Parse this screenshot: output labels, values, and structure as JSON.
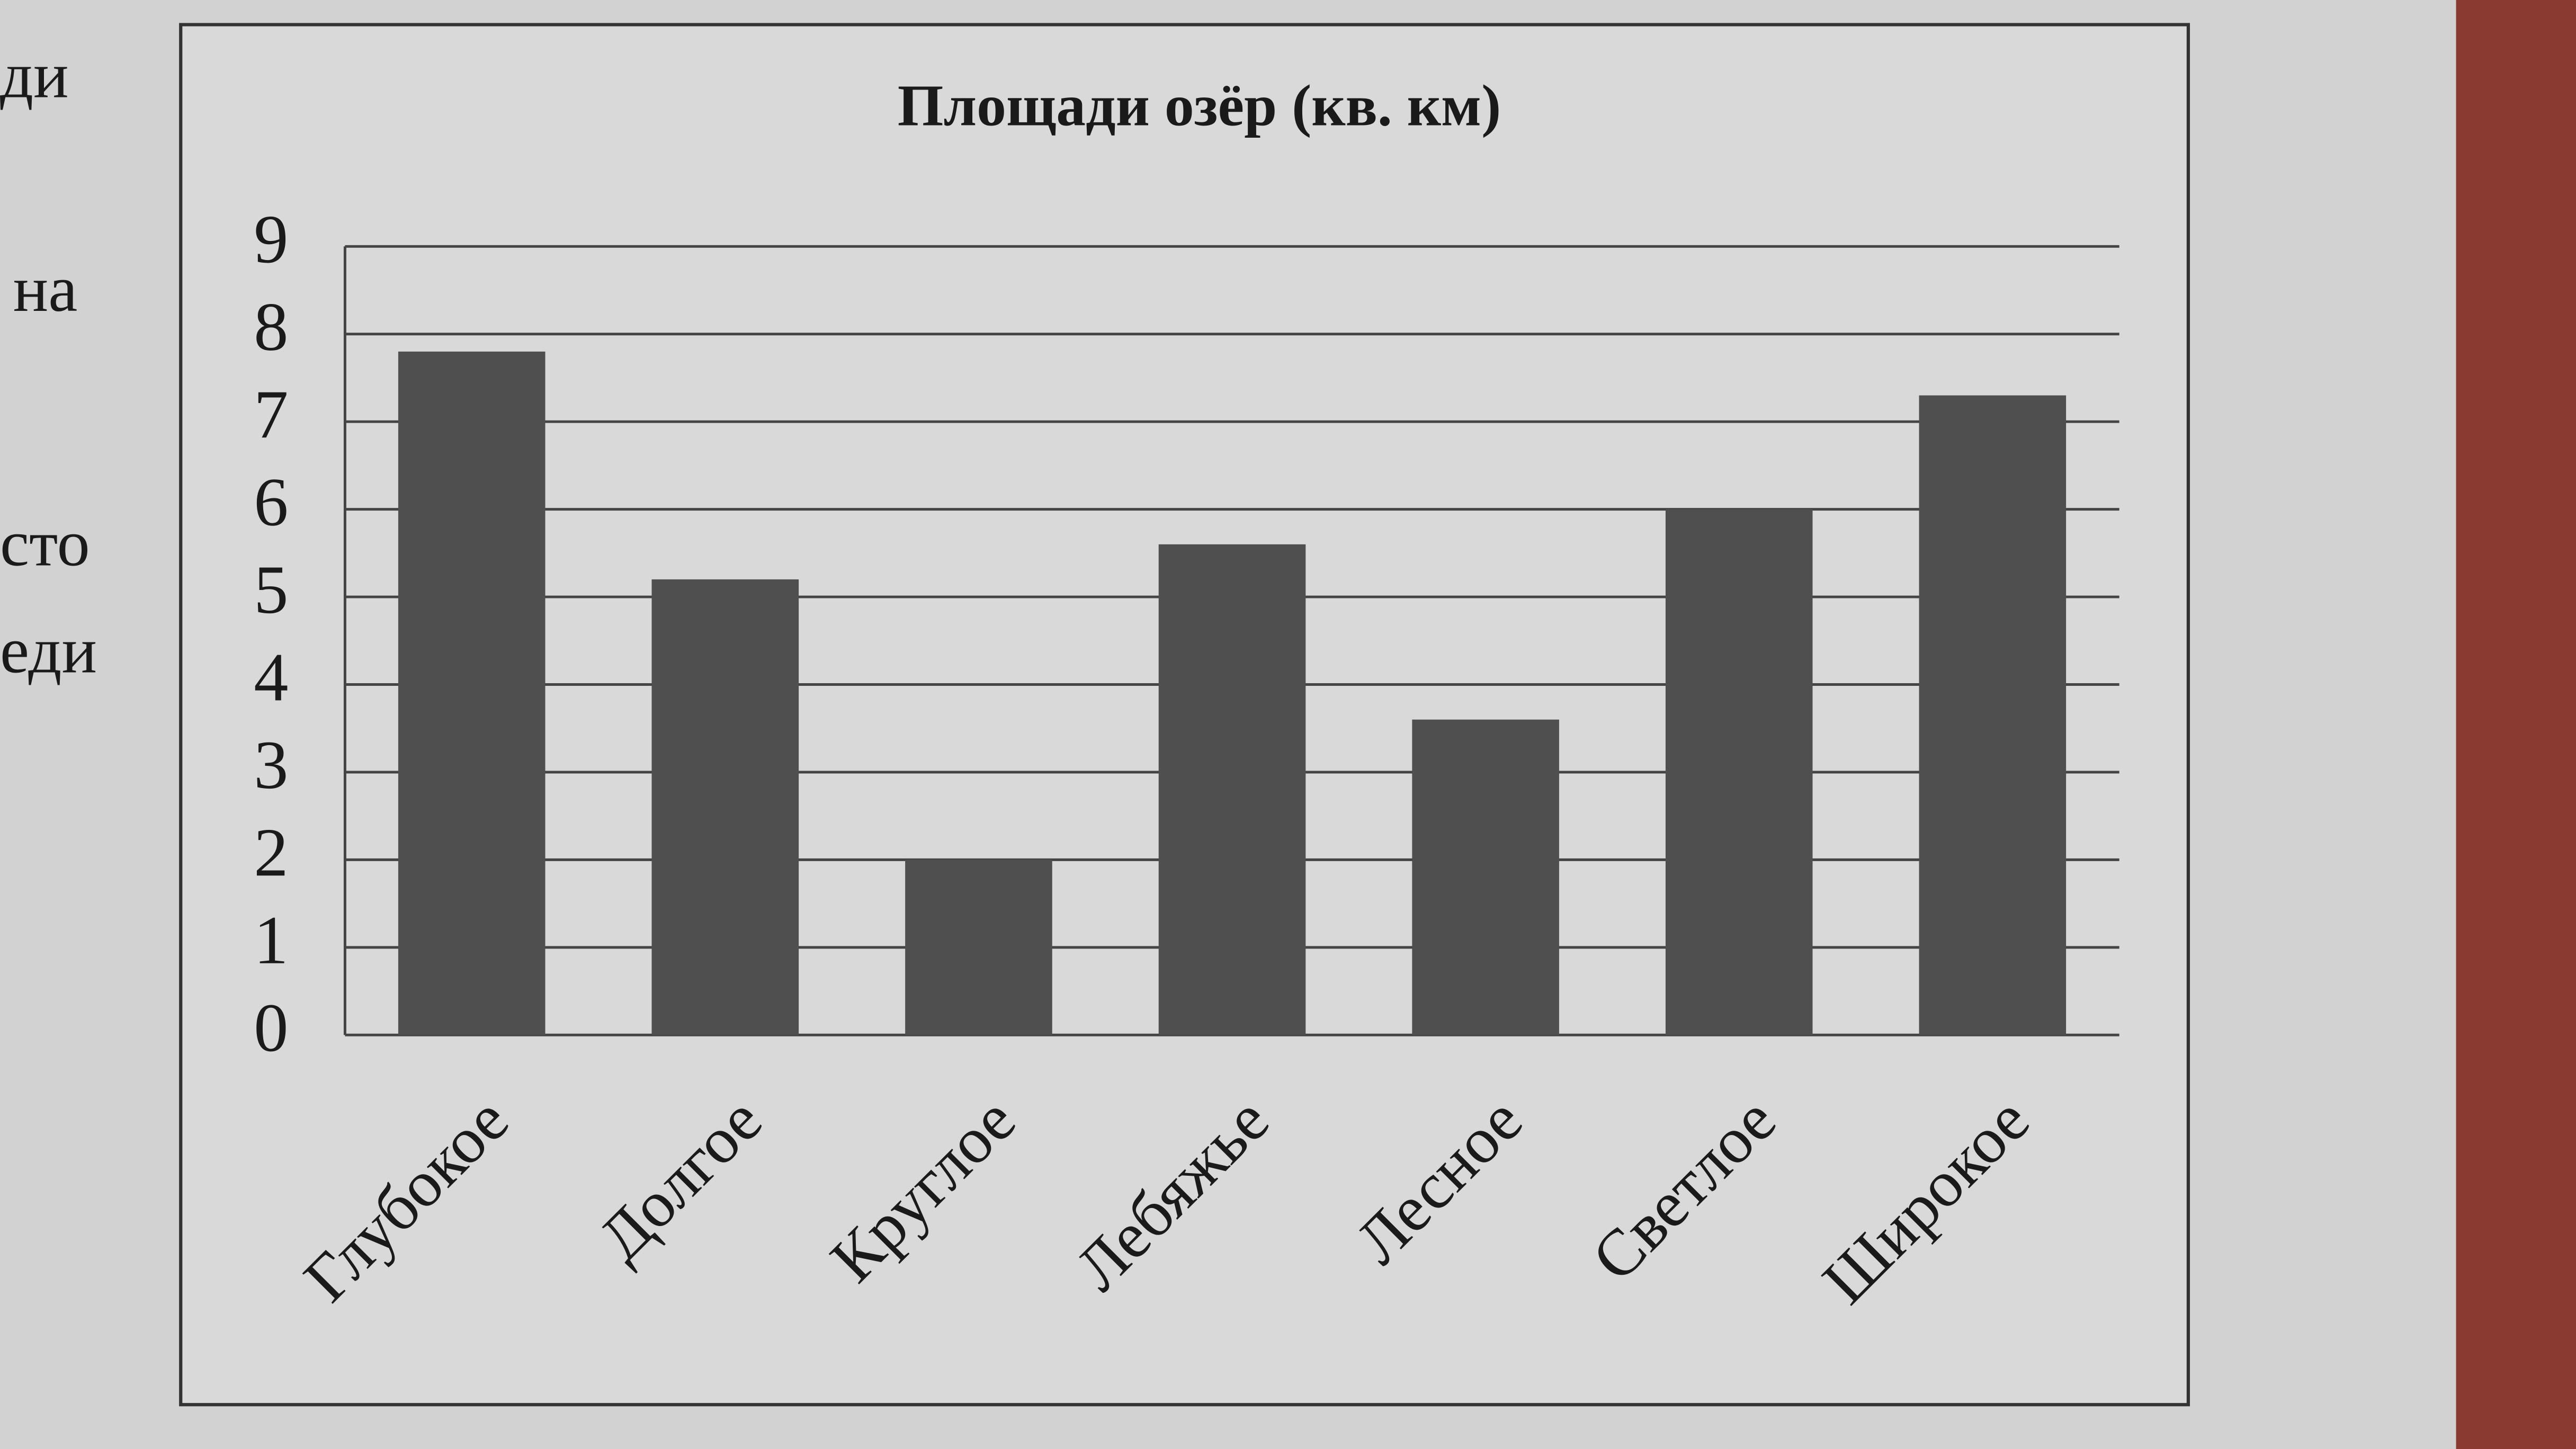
{
  "side_text": [
    "ди",
    "на",
    "сто",
    "еди"
  ],
  "chart_data": {
    "type": "bar",
    "title": "Площади озёр (кв. км)",
    "categories": [
      "Глубокое",
      "Долгое",
      "Круглое",
      "Лебяжье",
      "Лесное",
      "Светлое",
      "Широкое"
    ],
    "values": [
      7.8,
      5.2,
      2,
      5.6,
      3.6,
      6,
      7.3
    ],
    "color": "#4f4f4f",
    "ylim": [
      0,
      9
    ],
    "yticks": [
      0,
      1,
      2,
      3,
      4,
      5,
      6,
      7,
      8,
      9
    ],
    "grid": true
  }
}
